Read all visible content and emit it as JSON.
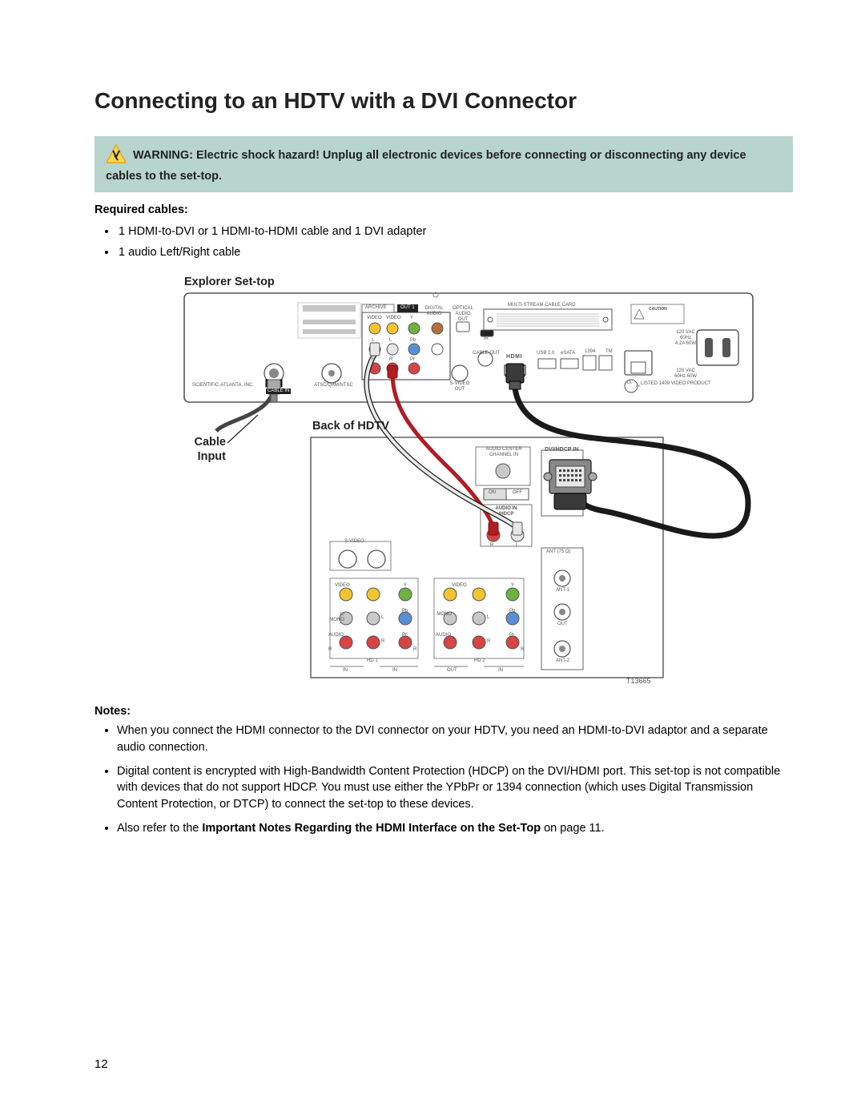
{
  "title": "Connecting to an HDTV with a DVI Connector",
  "warning": {
    "label": "WARNING:",
    "text": "Electric shock hazard! Unplug all electronic devices before connecting or disconnecting any device cables to the set-top."
  },
  "required": {
    "heading": "Required cables:",
    "items": [
      "1 HDMI-to-DVI or 1 HDMI-to-HDMI cable and 1 DVI adapter",
      "1 audio Left/Right cable"
    ]
  },
  "diagram": {
    "settop_label": "Explorer Set-top",
    "cable_input_label_1": "Cable",
    "cable_input_label_2": "Input",
    "hdtv_label": "Back of HDTV",
    "figure_id": "T13665",
    "settop": {
      "mfr": "SCIENTIFIC-ATLANTA, INC.",
      "cable_in": "CABLE IN",
      "atsc": "ATSC/QAM/NTSC",
      "archive": "ARCHIVE",
      "out1": "OUT 1",
      "video": "VIDEO",
      "optical": "OPTICAL AUDIO OUT",
      "digital_audio": "DIGITAL AUDIO",
      "audio": "AUDIO",
      "y": "Y",
      "l": "L",
      "pb": "Pb",
      "r": "R",
      "pr": "Pr",
      "ir": "IR",
      "cable_out": "CABLE OUT",
      "svideo_out": "S-VIDEO OUT",
      "hdmi": "HDMI",
      "usb": "USB 2.0",
      "esata": "eSATA",
      "ieee1394": "1394",
      "tm": "TM",
      "multistream": "MULTI-STREAM CABLE CARD",
      "caution": "CAUTION",
      "power1": "120 VAC 60Hz 4.2A 60W",
      "power2": "120 VAC 60Hz 60W",
      "ul": "LISTED 1409 VIDEO PRODUCT",
      "ul_mark": "UL",
      "ul_us": "US"
    },
    "hdtv": {
      "audio_center": "AUDIO CENTER CHANNEL IN",
      "dvi_hdcp_in": "DVI/HDCP IN",
      "on": "ON",
      "off": "OFF",
      "audio_in": "AUDIO IN /HDCP",
      "r": "R",
      "l": "L",
      "svideo": "S-VIDEO",
      "video": "VIDEO",
      "y": "Y",
      "l_mono": "L/ MONO",
      "mono": "MONO",
      "pb": "Pb",
      "audio": "AUDIO",
      "pr": "Pr",
      "hd1": "HD 1",
      "hd2": "HD 2",
      "in": "IN",
      "out": "OUT",
      "ant75": "ANT (75 Ω)",
      "ant1": "ANT-1",
      "ant2": "ANT-2",
      "out_label": "OUT"
    }
  },
  "notes": {
    "heading": "Notes",
    "items": [
      "When you connect the HDMI connector to the DVI connector on your HDTV, you need an HDMI-to-DVI adaptor and a separate audio connection.",
      "Digital content is encrypted with High-Bandwidth Content Protection (HDCP) on the DVI/HDMI port. This set-top is not compatible with devices that do not support HDCP. You must use either the YPbPr or 1394 connection (which uses Digital Transmission Content Protection, or DTCP) to connect the set-top to these devices.",
      "Also refer to the |Important Notes Regarding the HDMI Interface on the Set-Top| on page 11."
    ]
  },
  "page_number": "12",
  "colors": {
    "warning_bg": "#b7d4cd",
    "red_cable": "#b01d23",
    "white_cable": "#e8e8e8",
    "yellow": "#f4c430",
    "green": "#6cb33f",
    "blue": "#5a8fd6",
    "dvi_outline": "#444"
  }
}
